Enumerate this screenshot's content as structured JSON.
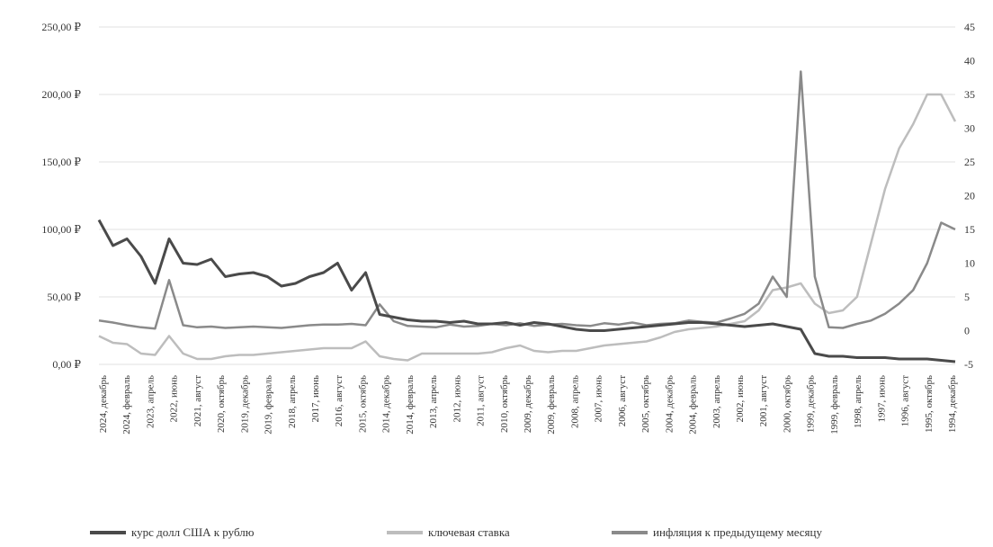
{
  "chart_data": {
    "type": "line",
    "title": "",
    "left_axis": {
      "ticks": [
        "250,00 ₽",
        "200,00 ₽",
        "150,00 ₽",
        "100,00 ₽",
        "50,00 ₽",
        "0,00 ₽"
      ],
      "ylim": [
        0,
        250
      ]
    },
    "right_axis": {
      "ticks": [
        "45",
        "40",
        "35",
        "30",
        "25",
        "20",
        "15",
        "10",
        "5",
        "0",
        "-5"
      ],
      "ylim": [
        -5,
        45
      ]
    },
    "x_ticks": [
      "2024, декабрь",
      "2024, февраль",
      "2023, апрель",
      "2022, июнь",
      "2021, август",
      "2020, октябрь",
      "2019, декабрь",
      "2019, февраль",
      "2018, апрель",
      "2017, июнь",
      "2016, август",
      "2015, октябрь",
      "2014, декабрь",
      "2014, февраль",
      "2013, апрель",
      "2012, июнь",
      "2011, август",
      "2010, октябрь",
      "2009, декабрь",
      "2009, февраль",
      "2008, апрель",
      "2007, июнь",
      "2006, август",
      "2005, октябрь",
      "2004, декабрь",
      "2004, февраль",
      "2003, апрель",
      "2002, июнь",
      "2001, август",
      "2000, октябрь",
      "1999, декабрь",
      "1999, февраль",
      "1998, апрель",
      "1997, июнь",
      "1996, август",
      "1995, октябрь",
      "1994, декабрь"
    ],
    "grid": true,
    "legend_position": "bottom",
    "series": [
      {
        "name": "курс долл США к рублю",
        "axis": "left",
        "color": "#4a4a4a",
        "values": [
          107,
          88,
          93,
          80,
          60,
          93,
          75,
          74,
          78,
          65,
          67,
          68,
          65,
          58,
          60,
          65,
          68,
          75,
          55,
          68,
          37,
          35,
          33,
          32,
          32,
          31,
          32,
          30,
          30,
          31,
          29,
          31,
          30,
          28,
          26,
          25,
          25,
          26,
          27,
          28,
          29,
          30,
          31,
          31,
          30,
          29,
          28,
          29,
          30,
          28,
          26,
          8,
          6,
          6,
          5,
          5,
          5,
          4,
          4,
          4,
          3,
          2
        ]
      },
      {
        "name": "ключевая ставка",
        "axis": "left",
        "color": "#bdbdbd",
        "values": [
          21,
          16,
          15,
          8,
          7,
          21,
          8,
          4,
          4,
          6,
          7,
          7,
          8,
          9,
          10,
          11,
          12,
          12,
          12,
          17,
          6,
          4,
          3,
          8,
          8,
          8,
          8,
          8,
          9,
          12,
          14,
          10,
          9,
          10,
          10,
          12,
          14,
          15,
          16,
          17,
          20,
          24,
          26,
          27,
          28,
          30,
          32,
          40,
          55,
          57,
          60,
          45,
          38,
          40,
          50,
          90,
          130,
          160,
          178,
          200,
          200,
          180
        ]
      },
      {
        "name": "инфляция к предыдущему месяцу",
        "axis": "right",
        "color": "#8a8a8a",
        "values": [
          1.5,
          1.2,
          0.8,
          0.5,
          0.3,
          7.5,
          0.8,
          0.5,
          0.6,
          0.4,
          0.5,
          0.6,
          0.5,
          0.4,
          0.6,
          0.8,
          0.9,
          0.9,
          1.0,
          0.8,
          3.9,
          1.4,
          0.7,
          0.6,
          0.5,
          0.9,
          0.6,
          0.7,
          1.0,
          0.8,
          1.1,
          0.7,
          0.9,
          1.0,
          0.8,
          0.7,
          1.1,
          0.9,
          1.2,
          0.8,
          1.0,
          1.1,
          1.5,
          1.3,
          1.2,
          1.8,
          2.5,
          4.0,
          8.0,
          5.0,
          38.4,
          8.0,
          0.5,
          0.4,
          1.0,
          1.5,
          2.5,
          4.0,
          6.0,
          10.0,
          16.0,
          15.0
        ]
      }
    ]
  }
}
